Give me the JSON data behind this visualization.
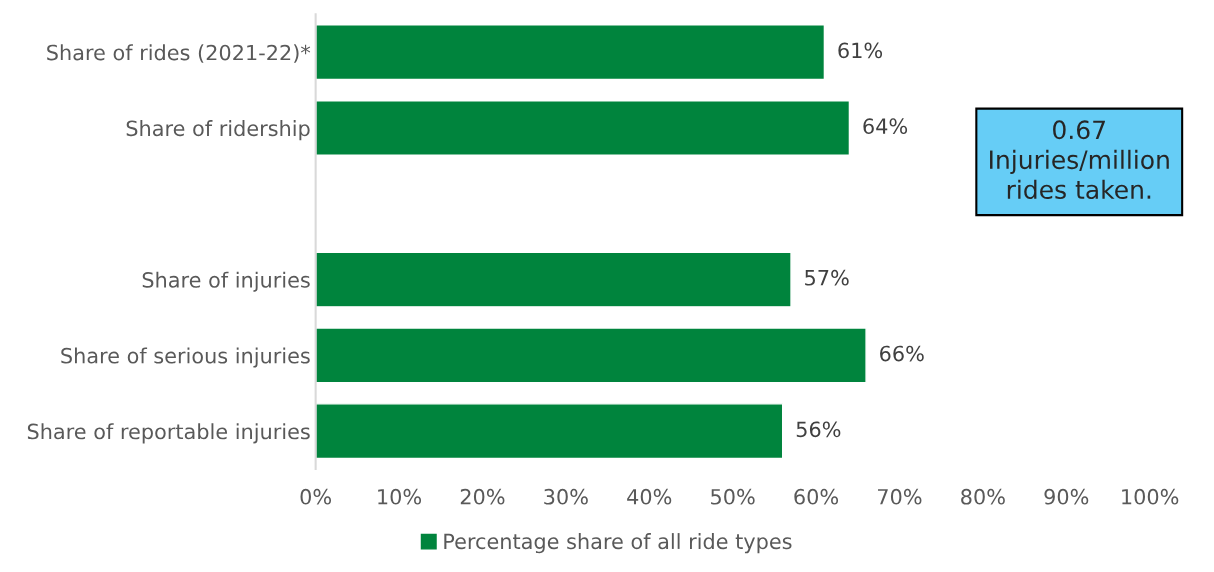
{
  "chart_data": {
    "type": "bar",
    "orientation": "horizontal",
    "categories": [
      "Share of rides (2021-22)*",
      "Share of ridership",
      null,
      "Share of injuries",
      "Share of serious injuries",
      "Share of reportable injuries"
    ],
    "series": [
      {
        "name": "Percentage share of all ride types",
        "color": "#00843d",
        "values": [
          61,
          64,
          null,
          57,
          66,
          56
        ],
        "value_labels": [
          "61%",
          "64%",
          null,
          "57%",
          "66%",
          "56%"
        ]
      }
    ],
    "xlim": [
      0,
      100
    ],
    "xticks": [
      {
        "value": 0,
        "label": "0%"
      },
      {
        "value": 10,
        "label": "10%"
      },
      {
        "value": 20,
        "label": "20%"
      },
      {
        "value": 30,
        "label": "30%"
      },
      {
        "value": 40,
        "label": "40%"
      },
      {
        "value": 50,
        "label": "50%"
      },
      {
        "value": 60,
        "label": "60%"
      },
      {
        "value": 70,
        "label": "70%"
      },
      {
        "value": 80,
        "label": "80%"
      },
      {
        "value": 90,
        "label": "90%"
      },
      {
        "value": 100,
        "label": "100%"
      }
    ],
    "grid": false,
    "legend": "bottom",
    "annotations": [
      "0.67\nInjuries/million\nrides taken."
    ]
  }
}
